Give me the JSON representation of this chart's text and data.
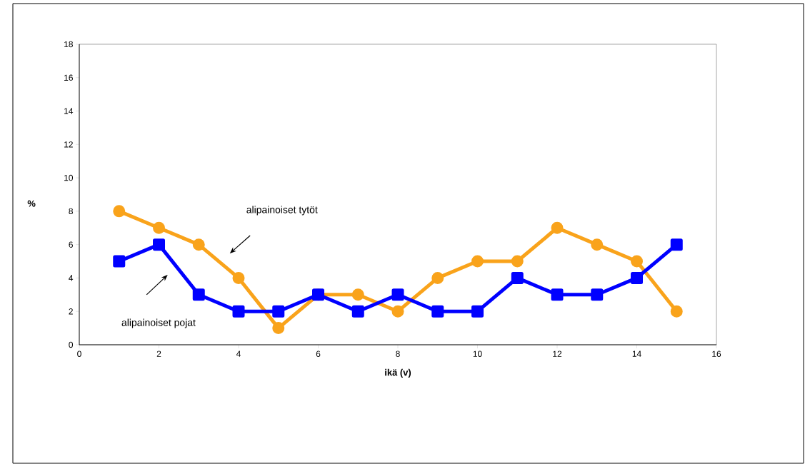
{
  "chart_data": {
    "type": "line",
    "xlabel": "ikä (v)",
    "ylabel": "%",
    "x": [
      1,
      2,
      3,
      4,
      5,
      6,
      7,
      8,
      9,
      10,
      11,
      12,
      13,
      14,
      15
    ],
    "series": [
      {
        "color": "#f9a31b",
        "marker": "circle",
        "values": [
          8,
          7,
          6,
          4,
          1,
          3,
          3,
          2,
          4,
          5,
          5,
          7,
          6,
          5,
          2
        ]
      },
      {
        "color": "#0000ff",
        "marker": "square",
        "values": [
          5,
          6,
          3,
          2,
          2,
          3,
          2,
          3,
          2,
          2,
          4,
          3,
          3,
          4,
          6
        ]
      }
    ],
    "xlim": [
      0,
      16
    ],
    "xticks": [
      0,
      2,
      4,
      6,
      8,
      10,
      12,
      14,
      16
    ],
    "ylim": [
      0,
      18
    ],
    "yticks": [
      0,
      2,
      4,
      6,
      8,
      10,
      12,
      14,
      16,
      18
    ],
    "line_style": "solid",
    "annotations": [
      "alipainoiset tytöt",
      "alipainoiset pojat"
    ]
  }
}
